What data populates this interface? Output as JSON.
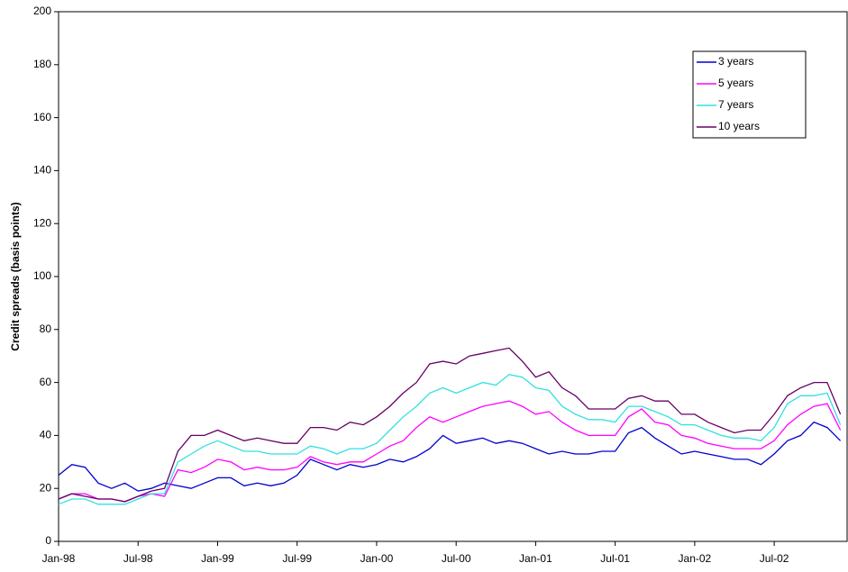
{
  "chart_data": {
    "type": "line",
    "y_label": "Credit spreads (basis points)",
    "categories": [
      "Jan-98",
      null,
      null,
      null,
      null,
      null,
      "Jul-98",
      null,
      null,
      null,
      null,
      null,
      "Jan-99",
      null,
      null,
      null,
      null,
      null,
      "Jul-99",
      null,
      null,
      null,
      null,
      null,
      "Jan-00",
      null,
      null,
      null,
      null,
      null,
      "Jul-00",
      null,
      null,
      null,
      null,
      null,
      "Jan-01",
      null,
      null,
      null,
      null,
      null,
      "Jul-01",
      null,
      null,
      null,
      null,
      null,
      "Jan-02",
      null,
      null,
      null,
      null,
      null,
      "Jul-02",
      null,
      null,
      null,
      null,
      null
    ],
    "series": [
      {
        "name": "3 years",
        "color": "#0000cc",
        "values": [
          25,
          29,
          28,
          22,
          20,
          22,
          19,
          20,
          22,
          21,
          20,
          22,
          24,
          24,
          21,
          22,
          21,
          22,
          25,
          31,
          29,
          27,
          29,
          28,
          29,
          31,
          30,
          32,
          35,
          40,
          37,
          38,
          39,
          37,
          38,
          37,
          35,
          33,
          34,
          33,
          33,
          34,
          34,
          41,
          43,
          39,
          36,
          33,
          34,
          33,
          32,
          31,
          31,
          29,
          33,
          38,
          40,
          45,
          43,
          38
        ]
      },
      {
        "name": "5 years",
        "color": "#ff00ff",
        "values": [
          16,
          18,
          18,
          16,
          16,
          15,
          17,
          18,
          17,
          27,
          26,
          28,
          31,
          30,
          27,
          28,
          27,
          27,
          28,
          32,
          30,
          29,
          30,
          30,
          33,
          36,
          38,
          43,
          47,
          45,
          47,
          49,
          51,
          52,
          53,
          51,
          48,
          49,
          45,
          42,
          40,
          40,
          40,
          47,
          50,
          45,
          44,
          40,
          39,
          37,
          36,
          35,
          35,
          35,
          38,
          44,
          48,
          51,
          52,
          42
        ]
      },
      {
        "name": "7 years",
        "color": "#33e0e0",
        "values": [
          14,
          16,
          16,
          14,
          14,
          14,
          16,
          18,
          18,
          30,
          33,
          36,
          38,
          36,
          34,
          34,
          33,
          33,
          33,
          36,
          35,
          33,
          35,
          35,
          37,
          42,
          47,
          51,
          56,
          58,
          56,
          58,
          60,
          59,
          63,
          62,
          58,
          57,
          51,
          48,
          46,
          46,
          45,
          51,
          51,
          49,
          47,
          44,
          44,
          42,
          40,
          39,
          39,
          38,
          43,
          52,
          55,
          55,
          56,
          44
        ]
      },
      {
        "name": "10 years",
        "color": "#660066",
        "values": [
          16,
          18,
          17,
          16,
          16,
          15,
          17,
          19,
          20,
          34,
          40,
          40,
          42,
          40,
          38,
          39,
          38,
          37,
          37,
          43,
          43,
          42,
          45,
          44,
          47,
          51,
          56,
          60,
          67,
          68,
          67,
          70,
          71,
          72,
          73,
          68,
          62,
          64,
          58,
          55,
          50,
          50,
          50,
          54,
          55,
          53,
          53,
          48,
          48,
          45,
          43,
          41,
          42,
          42,
          48,
          55,
          58,
          60,
          60,
          48
        ]
      }
    ],
    "ylim": [
      0,
      200
    ],
    "yticks": [
      0,
      20,
      40,
      60,
      80,
      100,
      120,
      140,
      160,
      180,
      200
    ],
    "legend": "top-right",
    "grid": false
  }
}
